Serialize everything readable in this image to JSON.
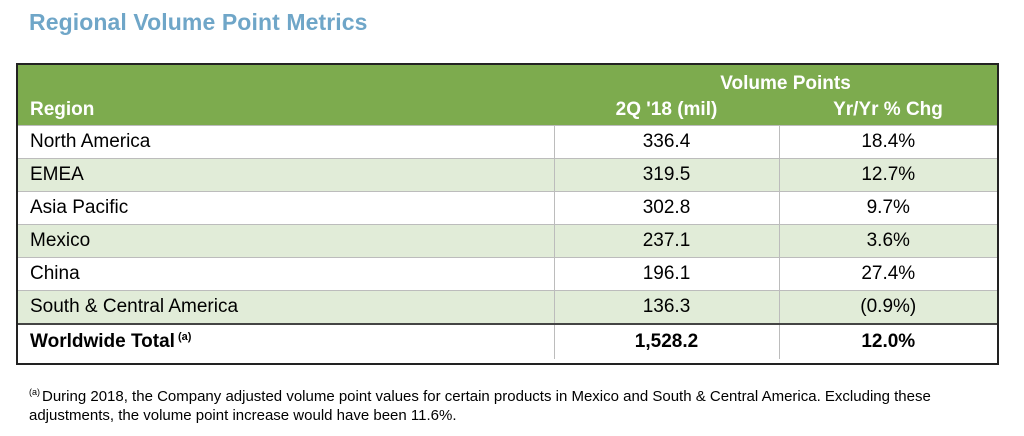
{
  "title": "Regional Volume Point Metrics",
  "table": {
    "super_header": "Volume Points",
    "headers": {
      "region": "Region",
      "volume": "2Q '18 (mil)",
      "change": "Yr/Yr % Chg"
    },
    "rows": [
      {
        "region": "North America",
        "volume": "336.4",
        "change": "18.4%"
      },
      {
        "region": "EMEA",
        "volume": "319.5",
        "change": "12.7%"
      },
      {
        "region": "Asia Pacific",
        "volume": "302.8",
        "change": "9.7%"
      },
      {
        "region": "Mexico",
        "volume": "237.1",
        "change": "3.6%"
      },
      {
        "region": "China",
        "volume": "196.1",
        "change": "27.4%"
      },
      {
        "region": "South & Central America",
        "volume": "136.3",
        "change": "(0.9%)"
      }
    ],
    "total": {
      "region": "Worldwide Total",
      "marker": "(a)",
      "volume": "1,528.2",
      "change": "12.0%"
    }
  },
  "footnote": {
    "marker": "(a)",
    "text": "During 2018, the Company adjusted volume point values for certain products in Mexico and South & Central America. Excluding these adjustments, the volume point increase would have been 11.6%."
  },
  "colors": {
    "title": "#6fa6c8",
    "header_bg": "#7dab4e",
    "alt_row_bg": "#e1ecd8"
  }
}
